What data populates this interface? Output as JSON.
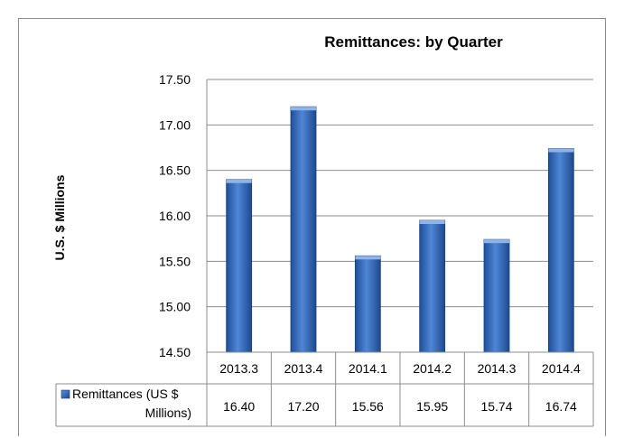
{
  "chart_data": {
    "type": "bar",
    "title": "Remittances: by Quarter",
    "ylabel": "U.S. $ Millions",
    "xlabel": "",
    "categories": [
      "2013.3",
      "2013.4",
      "2014.1",
      "2014.2",
      "2014.3",
      "2014.4"
    ],
    "series": [
      {
        "name": "Remittances (US $ Millions)",
        "legend_lines": [
          "Remittances (US $",
          "Millions)"
        ],
        "values": [
          16.4,
          17.2,
          15.56,
          15.95,
          15.74,
          16.74
        ],
        "value_labels": [
          "16.40",
          "17.20",
          "15.56",
          "15.95",
          "15.74",
          "16.74"
        ],
        "color": "#3a6fc4"
      }
    ],
    "ylim": [
      14.5,
      17.5
    ],
    "yticks": [
      "14.50",
      "15.00",
      "15.50",
      "16.00",
      "16.50",
      "17.00",
      "17.50"
    ],
    "grid": true,
    "legend": "data-table"
  }
}
